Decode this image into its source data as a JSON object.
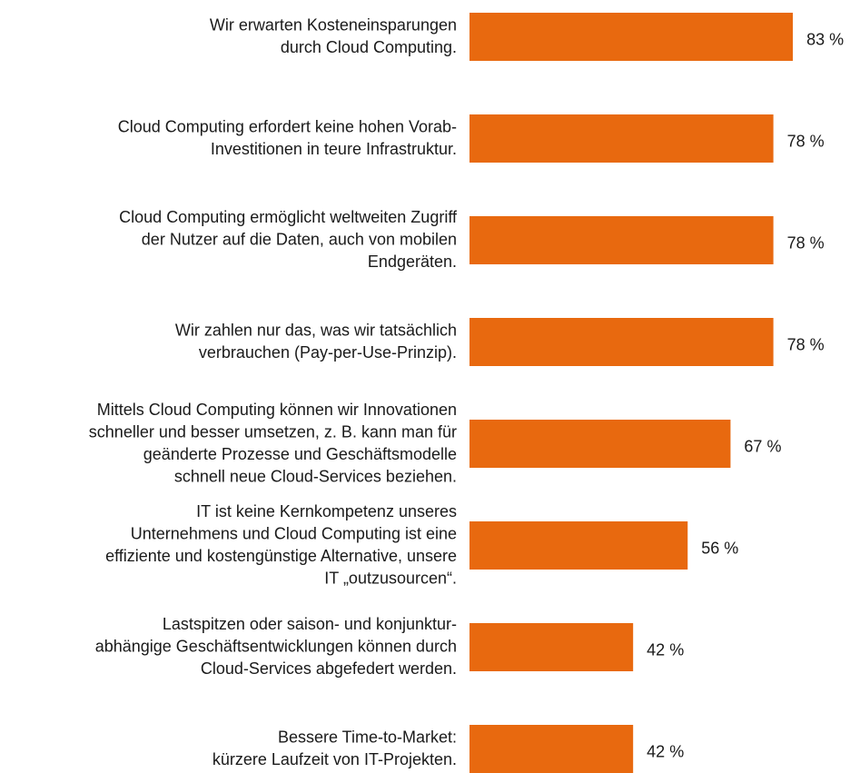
{
  "chart_data": {
    "type": "bar",
    "orientation": "horizontal",
    "categories": [
      "Wir erwarten Kosteneinsparungen\ndurch Cloud Computing.",
      "Cloud Computing erfordert keine hohen Vorab-\nInvestitionen in teure Infrastruktur.",
      "Cloud Computing ermöglicht weltweiten Zugriff\nder Nutzer auf die Daten, auch von mobilen\nEndgeräten.",
      "Wir zahlen nur das, was wir tatsächlich\nverbrauchen (Pay-per-Use-Prinzip).",
      "Mittels Cloud Computing können wir Innovationen\nschneller und besser umsetzen, z. B. kann man für\ngeänderte Prozesse und Geschäftsmodelle\nschnell neue Cloud-Services beziehen.",
      "IT ist keine Kernkompetenz unseres\nUnternehmens und Cloud Computing ist eine\neffiziente und kostengünstige Alternative, unsere\nIT „outzusourcen“.",
      "Lastspitzen oder saison- und konjunktur-\nabhängige Geschäftsentwicklungen können durch\nCloud-Services abgefedert werden.",
      "Bessere Time-to-Market:\nkürzere Laufzeit von IT-Projekten."
    ],
    "values": [
      83,
      78,
      78,
      78,
      67,
      56,
      42,
      42
    ],
    "value_labels": [
      "83 %",
      "78 %",
      "78 %",
      "78 %",
      "67 %",
      "56 %",
      "42 %",
      "42 %"
    ],
    "color": "#e8690f",
    "xlim": [
      0,
      100
    ]
  }
}
